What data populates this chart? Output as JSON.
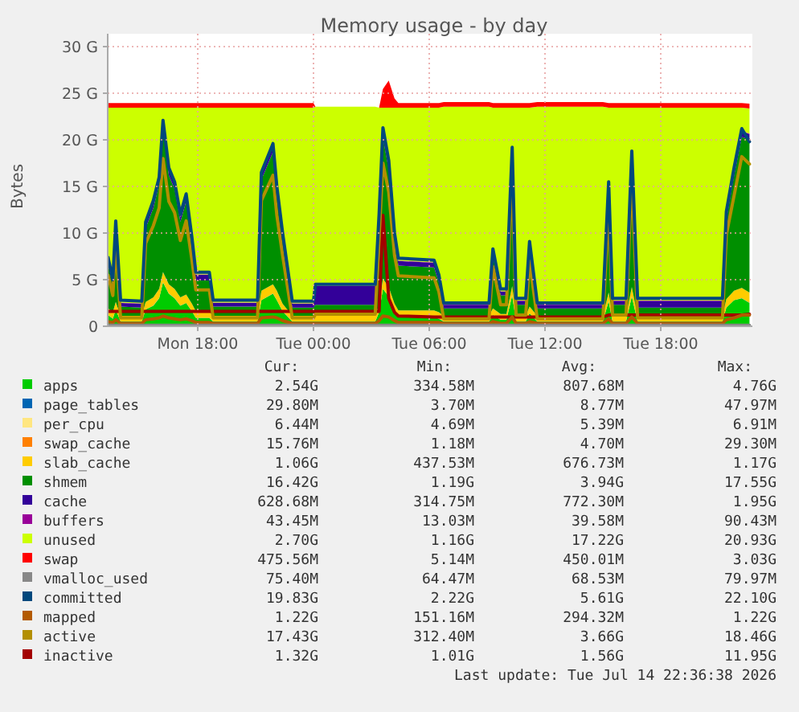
{
  "chart_data": {
    "type": "area",
    "title": "Memory usage - by day",
    "ylabel": "Bytes",
    "stacked": true,
    "grid": true,
    "legend": "bottom",
    "xlim": [
      "2026-07-13T13:20",
      "2026-07-14T22:45"
    ],
    "xticks": [
      {
        "value": "2026-07-13T18:00",
        "label": "Mon 18:00"
      },
      {
        "value": "2026-07-14T00:00",
        "label": "Tue 00:00"
      },
      {
        "value": "2026-07-14T06:00",
        "label": "Tue 06:00"
      },
      {
        "value": "2026-07-14T12:00",
        "label": "Tue 12:00"
      },
      {
        "value": "2026-07-14T18:00",
        "label": "Tue 18:00"
      }
    ],
    "ylim": [
      0,
      30
    ],
    "yticks": [
      0,
      {
        "value": 5,
        "label": "5 G"
      },
      {
        "value": 10,
        "label": "10 G"
      },
      {
        "value": 15,
        "label": "15 G"
      },
      {
        "value": 20,
        "label": "20 G"
      },
      {
        "value": 25,
        "label": "25 G"
      },
      {
        "value": 30,
        "label": "30 G"
      }
    ],
    "x": [
      "2026-07-13T13:21",
      "2026-07-13T13:36",
      "2026-07-13T13:45",
      "2026-07-13T14:00",
      "2026-07-13T15:06",
      "2026-07-13T15:18",
      "2026-07-13T15:42",
      "2026-07-13T16:00",
      "2026-07-13T16:12",
      "2026-07-13T16:30",
      "2026-07-13T16:48",
      "2026-07-13T17:06",
      "2026-07-13T17:24",
      "2026-07-13T17:42",
      "2026-07-13T17:54",
      "2026-07-13T18:36",
      "2026-07-13T18:48",
      "2026-07-13T21:06",
      "2026-07-13T21:18",
      "2026-07-13T21:54",
      "2026-07-13T22:06",
      "2026-07-13T22:24",
      "2026-07-13T22:54",
      "2026-07-14T00:00",
      "2026-07-14T00:06",
      "2026-07-14T03:12",
      "2026-07-14T03:24",
      "2026-07-14T03:36",
      "2026-07-14T03:54",
      "2026-07-14T04:12",
      "2026-07-14T04:24",
      "2026-07-14T06:15",
      "2026-07-14T06:30",
      "2026-07-14T06:45",
      "2026-07-14T09:06",
      "2026-07-14T09:18",
      "2026-07-14T09:42",
      "2026-07-14T10:00",
      "2026-07-14T10:18",
      "2026-07-14T10:30",
      "2026-07-14T11:00",
      "2026-07-14T11:12",
      "2026-07-14T11:36",
      "2026-07-14T15:00",
      "2026-07-14T15:18",
      "2026-07-14T15:30",
      "2026-07-14T16:12",
      "2026-07-14T16:30",
      "2026-07-14T16:48",
      "2026-07-14T21:12",
      "2026-07-14T21:24",
      "2026-07-14T21:48",
      "2026-07-14T22:12",
      "2026-07-14T22:36"
    ],
    "series": [
      {
        "name": "apps",
        "color": "#00cc00",
        "values": [
          1.2,
          0.8,
          1.8,
          0.5,
          0.5,
          1.8,
          2.2,
          3.0,
          4.7,
          3.5,
          3.0,
          2.2,
          2.5,
          1.6,
          0.9,
          0.9,
          0.5,
          0.5,
          2.8,
          3.5,
          2.8,
          1.6,
          0.5,
          0.5,
          0.5,
          0.5,
          1.5,
          4.0,
          3.2,
          1.6,
          1.0,
          1.0,
          0.8,
          0.5,
          0.5,
          1.2,
          0.7,
          0.7,
          3.3,
          0.5,
          0.5,
          1.4,
          0.5,
          0.5,
          2.7,
          0.5,
          0.5,
          3.2,
          0.5,
          0.5,
          2.0,
          2.8,
          3.0,
          2.5
        ]
      },
      {
        "name": "page_tables",
        "color": "#0066b3",
        "values": [
          0.01,
          0.01,
          0.01,
          0.01,
          0.01,
          0.01,
          0.01,
          0.01,
          0.01,
          0.01,
          0.01,
          0.01,
          0.01,
          0.01,
          0.01,
          0.01,
          0.01,
          0.01,
          0.01,
          0.01,
          0.01,
          0.01,
          0.01,
          0.01,
          0.01,
          0.01,
          0.01,
          0.01,
          0.01,
          0.01,
          0.01,
          0.01,
          0.01,
          0.01,
          0.01,
          0.01,
          0.01,
          0.01,
          0.01,
          0.01,
          0.01,
          0.01,
          0.01,
          0.01,
          0.01,
          0.01,
          0.01,
          0.01,
          0.01,
          0.01,
          0.01,
          0.01,
          0.01,
          0.03
        ]
      },
      {
        "name": "per_cpu",
        "color": "#ffe680",
        "values": [
          null,
          null,
          null,
          null,
          null,
          null,
          null,
          null,
          null,
          null,
          null,
          null,
          null,
          null,
          null,
          null,
          null,
          null,
          null,
          null,
          null,
          null,
          null,
          null,
          null,
          null,
          null,
          null,
          null,
          null,
          null,
          null,
          null,
          null,
          null,
          null,
          null,
          null,
          null,
          null,
          null,
          null,
          null,
          null,
          null,
          null,
          null,
          null,
          null,
          null,
          null,
          null,
          null,
          null
        ]
      },
      {
        "name": "swap_cache",
        "color": "#ff8000",
        "values": [
          null,
          null,
          null,
          null,
          null,
          null,
          null,
          null,
          null,
          null,
          null,
          null,
          null,
          null,
          null,
          null,
          null,
          null,
          null,
          null,
          null,
          null,
          null,
          null,
          null,
          null,
          null,
          null,
          null,
          null,
          null,
          null,
          null,
          null,
          null,
          null,
          null,
          null,
          null,
          null,
          null,
          null,
          null,
          null,
          null,
          null,
          null,
          null,
          null,
          null,
          null,
          null,
          null,
          null
        ]
      },
      {
        "name": "slab_cache",
        "color": "#ffcc00",
        "values": [
          0.7,
          0.7,
          0.8,
          0.6,
          0.6,
          0.8,
          0.9,
          1.0,
          1.1,
          1.0,
          1.0,
          0.9,
          0.9,
          0.8,
          0.7,
          0.7,
          0.6,
          0.6,
          1.0,
          1.0,
          1.0,
          0.8,
          0.6,
          0.6,
          0.6,
          0.6,
          0.8,
          1.1,
          1.0,
          0.8,
          0.7,
          0.7,
          0.7,
          0.6,
          0.6,
          0.7,
          0.6,
          0.6,
          1.0,
          0.6,
          0.6,
          0.7,
          0.6,
          0.6,
          0.9,
          0.6,
          0.6,
          1.0,
          0.6,
          0.6,
          0.9,
          1.0,
          1.1,
          1.1
        ]
      },
      {
        "name": "shmem",
        "color": "#008f00",
        "values": [
          4.8,
          2.8,
          8.0,
          1.0,
          0.9,
          7.9,
          9.6,
          11.2,
          15.4,
          11.7,
          10.7,
          8.1,
          10.0,
          6.3,
          3.3,
          3.3,
          1.0,
          1.0,
          11.9,
          14.2,
          10.4,
          6.8,
          0.9,
          0.9,
          1.2,
          1.2,
          8.6,
          15.1,
          12.6,
          6.8,
          4.8,
          4.6,
          3.2,
          0.8,
          0.8,
          5.7,
          2.0,
          2.0,
          14.1,
          1.2,
          1.2,
          6.3,
          0.8,
          0.8,
          11.2,
          1.2,
          1.2,
          13.8,
          0.9,
          0.9,
          8.5,
          12.3,
          16.2,
          16.4
        ]
      },
      {
        "name": "cache",
        "color": "#330099",
        "values": [
          0.4,
          0.4,
          0.4,
          0.4,
          0.4,
          0.4,
          0.5,
          0.5,
          0.6,
          0.5,
          0.5,
          0.5,
          0.5,
          0.5,
          0.6,
          0.6,
          0.4,
          0.4,
          0.5,
          0.6,
          0.5,
          0.5,
          0.4,
          0.4,
          2.0,
          2.0,
          0.8,
          0.8,
          0.7,
          0.5,
          0.5,
          0.5,
          0.5,
          0.4,
          0.4,
          0.4,
          0.4,
          0.4,
          0.5,
          0.4,
          0.4,
          0.4,
          0.4,
          0.4,
          0.4,
          0.4,
          0.4,
          0.5,
          0.7,
          0.7,
          0.6,
          0.6,
          0.6,
          0.6
        ]
      },
      {
        "name": "buffers",
        "color": "#990099",
        "values": [
          0.04,
          0.04,
          0.04,
          0.04,
          0.04,
          0.04,
          0.04,
          0.04,
          0.04,
          0.04,
          0.04,
          0.04,
          0.04,
          0.04,
          0.04,
          0.04,
          0.04,
          0.04,
          0.04,
          0.04,
          0.04,
          0.04,
          0.04,
          0.04,
          0.04,
          0.04,
          0.04,
          0.04,
          0.04,
          0.04,
          0.04,
          0.04,
          0.04,
          0.04,
          0.04,
          0.04,
          0.04,
          0.04,
          0.04,
          0.04,
          0.04,
          0.04,
          0.04,
          0.04,
          0.04,
          0.04,
          0.04,
          0.04,
          0.04,
          0.04,
          0.04,
          0.04,
          0.04,
          0.04
        ]
      },
      {
        "name": "unused",
        "color": "#ccff00",
        "values": [
          16.3,
          18.7,
          12.4,
          20.9,
          21.0,
          12.5,
          10.2,
          7.7,
          1.6,
          6.7,
          8.2,
          11.7,
          9.5,
          14.2,
          17.9,
          17.9,
          20.9,
          20.9,
          7.2,
          4.1,
          8.7,
          13.7,
          21.0,
          21.0,
          19.2,
          19.2,
          11.7,
          2.4,
          5.9,
          13.7,
          16.4,
          16.6,
          18.2,
          21.2,
          21.2,
          15.4,
          19.7,
          19.7,
          4.5,
          20.7,
          20.7,
          14.6,
          21.2,
          21.2,
          8.2,
          20.7,
          20.7,
          4.9,
          20.7,
          20.7,
          11.4,
          6.7,
          2.5,
          2.7
        ]
      },
      {
        "name": "swap",
        "color": "#ff0000",
        "values": [
          0.5,
          0.5,
          0.5,
          0.5,
          0.5,
          0.5,
          0.5,
          0.5,
          0.5,
          0.5,
          0.5,
          0.5,
          0.5,
          0.5,
          0.5,
          0.5,
          0.5,
          0.5,
          0.5,
          0.5,
          0.5,
          0.5,
          0.5,
          0.5,
          0,
          0,
          0,
          2.0,
          2.9,
          1.0,
          0.5,
          0.5,
          0.5,
          0.5,
          0.5,
          0.5,
          0.5,
          0.5,
          0.5,
          0.5,
          0.5,
          0.5,
          0.5,
          0.5,
          0.5,
          0.5,
          0.5,
          0.5,
          0.5,
          0.5,
          0.5,
          0.5,
          0.5,
          0.5
        ]
      },
      {
        "name": "vmalloc_used",
        "type": "line",
        "color": "#888888",
        "values": [
          0.1,
          0.1,
          0.1,
          0.1,
          0.1,
          0.1,
          0.1,
          0.1,
          0.1,
          0.1,
          0.1,
          0.1,
          0.1,
          0.1,
          0.1,
          0.1,
          0.1,
          0.1,
          0.1,
          0.1,
          0.1,
          0.1,
          0.1,
          0.1,
          0.1,
          0.1,
          0.1,
          0.1,
          0.1,
          0.1,
          0.1,
          0.1,
          0.1,
          0.1,
          0.1,
          0.1,
          0.1,
          0.1,
          0.1,
          0.1,
          0.1,
          0.1,
          0.1,
          0.1,
          0.1,
          0.1,
          0.1,
          0.1,
          0.1,
          0.1,
          0.1,
          0.1,
          0.1,
          0.1
        ]
      },
      {
        "name": "committed",
        "type": "line",
        "color": "#00487d",
        "values": [
          7.4,
          5.0,
          11.3,
          2.8,
          2.7,
          11.2,
          13.5,
          16.0,
          22.1,
          17.0,
          15.5,
          12.0,
          14.2,
          9.5,
          5.8,
          5.8,
          2.8,
          2.8,
          16.5,
          19.6,
          15.0,
          10.0,
          2.7,
          2.7,
          4.5,
          4.5,
          12.0,
          21.3,
          17.8,
          10.0,
          7.3,
          7.1,
          5.5,
          2.5,
          2.5,
          8.3,
          4.0,
          4.0,
          19.2,
          3.0,
          3.0,
          9.1,
          2.5,
          2.5,
          15.5,
          3.0,
          3.0,
          18.8,
          3.0,
          3.0,
          12.3,
          17.0,
          21.2,
          19.8
        ]
      },
      {
        "name": "mapped",
        "type": "line",
        "color": "#b35a00",
        "values": [
          0.5,
          0.4,
          0.7,
          0.3,
          0.3,
          0.7,
          0.8,
          0.9,
          1.1,
          0.9,
          0.8,
          0.7,
          0.8,
          0.6,
          0.4,
          0.4,
          0.3,
          0.3,
          0.9,
          1.0,
          0.9,
          0.6,
          0.3,
          0.3,
          0.3,
          0.3,
          0.6,
          1.1,
          1.0,
          0.6,
          0.4,
          0.4,
          0.4,
          0.3,
          0.3,
          0.5,
          0.3,
          0.3,
          1.0,
          0.3,
          0.3,
          0.5,
          0.3,
          0.3,
          0.8,
          0.3,
          0.3,
          1.0,
          0.3,
          0.3,
          0.7,
          0.9,
          1.2,
          1.2
        ]
      },
      {
        "name": "active",
        "type": "line",
        "color": "#b38f00",
        "values": [
          5.5,
          3.3,
          9.0,
          0.9,
          0.9,
          8.9,
          10.8,
          12.7,
          18.0,
          13.4,
          12.2,
          9.2,
          11.3,
          7.1,
          3.9,
          3.9,
          0.9,
          0.9,
          13.5,
          16.2,
          11.9,
          7.6,
          0.9,
          0.9,
          1.3,
          1.3,
          9.5,
          17.5,
          14.4,
          7.6,
          5.4,
          5.2,
          3.7,
          0.8,
          0.8,
          6.4,
          2.3,
          2.3,
          16.1,
          1.2,
          1.2,
          7.0,
          0.8,
          0.8,
          12.8,
          1.2,
          1.2,
          15.9,
          0.9,
          0.9,
          9.8,
          14.0,
          18.2,
          17.4
        ]
      },
      {
        "name": "inactive",
        "type": "line",
        "color": "#a30000",
        "values": [
          1.6,
          1.6,
          1.6,
          1.6,
          1.6,
          1.6,
          1.6,
          1.6,
          1.6,
          1.6,
          1.6,
          1.6,
          1.6,
          1.6,
          1.6,
          1.6,
          1.6,
          1.6,
          1.6,
          1.6,
          1.6,
          1.6,
          1.6,
          1.6,
          1.6,
          1.6,
          1.6,
          11.9,
          3.0,
          1.5,
          1.1,
          1.0,
          1.0,
          1.0,
          1.0,
          1.0,
          1.0,
          1.0,
          1.0,
          1.0,
          1.0,
          1.0,
          1.0,
          1.0,
          1.2,
          1.2,
          1.2,
          1.2,
          1.2,
          1.2,
          1.2,
          1.2,
          1.2,
          1.3
        ]
      }
    ],
    "annotations": [
      "Cur:",
      "Min:",
      "Avg:",
      "Max:",
      "2.54G",
      "334.58M",
      "807.68M",
      "4.76G",
      "29.80M",
      "3.70M",
      "8.77M",
      "47.97M",
      "6.44M",
      "4.69M",
      "5.39M",
      "6.91M",
      "15.76M",
      "1.18M",
      "4.70M",
      "29.30M",
      "1.06G",
      "437.53M",
      "676.73M",
      "1.17G",
      "16.42G",
      "1.19G",
      "3.94G",
      "17.55G",
      "628.68M",
      "314.75M",
      "772.30M",
      "1.95G",
      "43.45M",
      "13.03M",
      "39.58M",
      "90.43M",
      "2.70G",
      "1.16G",
      "17.22G",
      "20.93G",
      "475.56M",
      "5.14M",
      "450.01M",
      "3.03G",
      "75.40M",
      "64.47M",
      "68.53M",
      "79.97M",
      "19.83G",
      "2.22G",
      "5.61G",
      "22.10G",
      "1.22G",
      "151.16M",
      "294.32M",
      "1.22G",
      "17.43G",
      "312.40M",
      "3.66G",
      "18.46G",
      "1.32G",
      "1.01G",
      "1.56G",
      "11.95G",
      "Last update: Tue Jul 14 22:36:38 2026"
    ]
  }
}
